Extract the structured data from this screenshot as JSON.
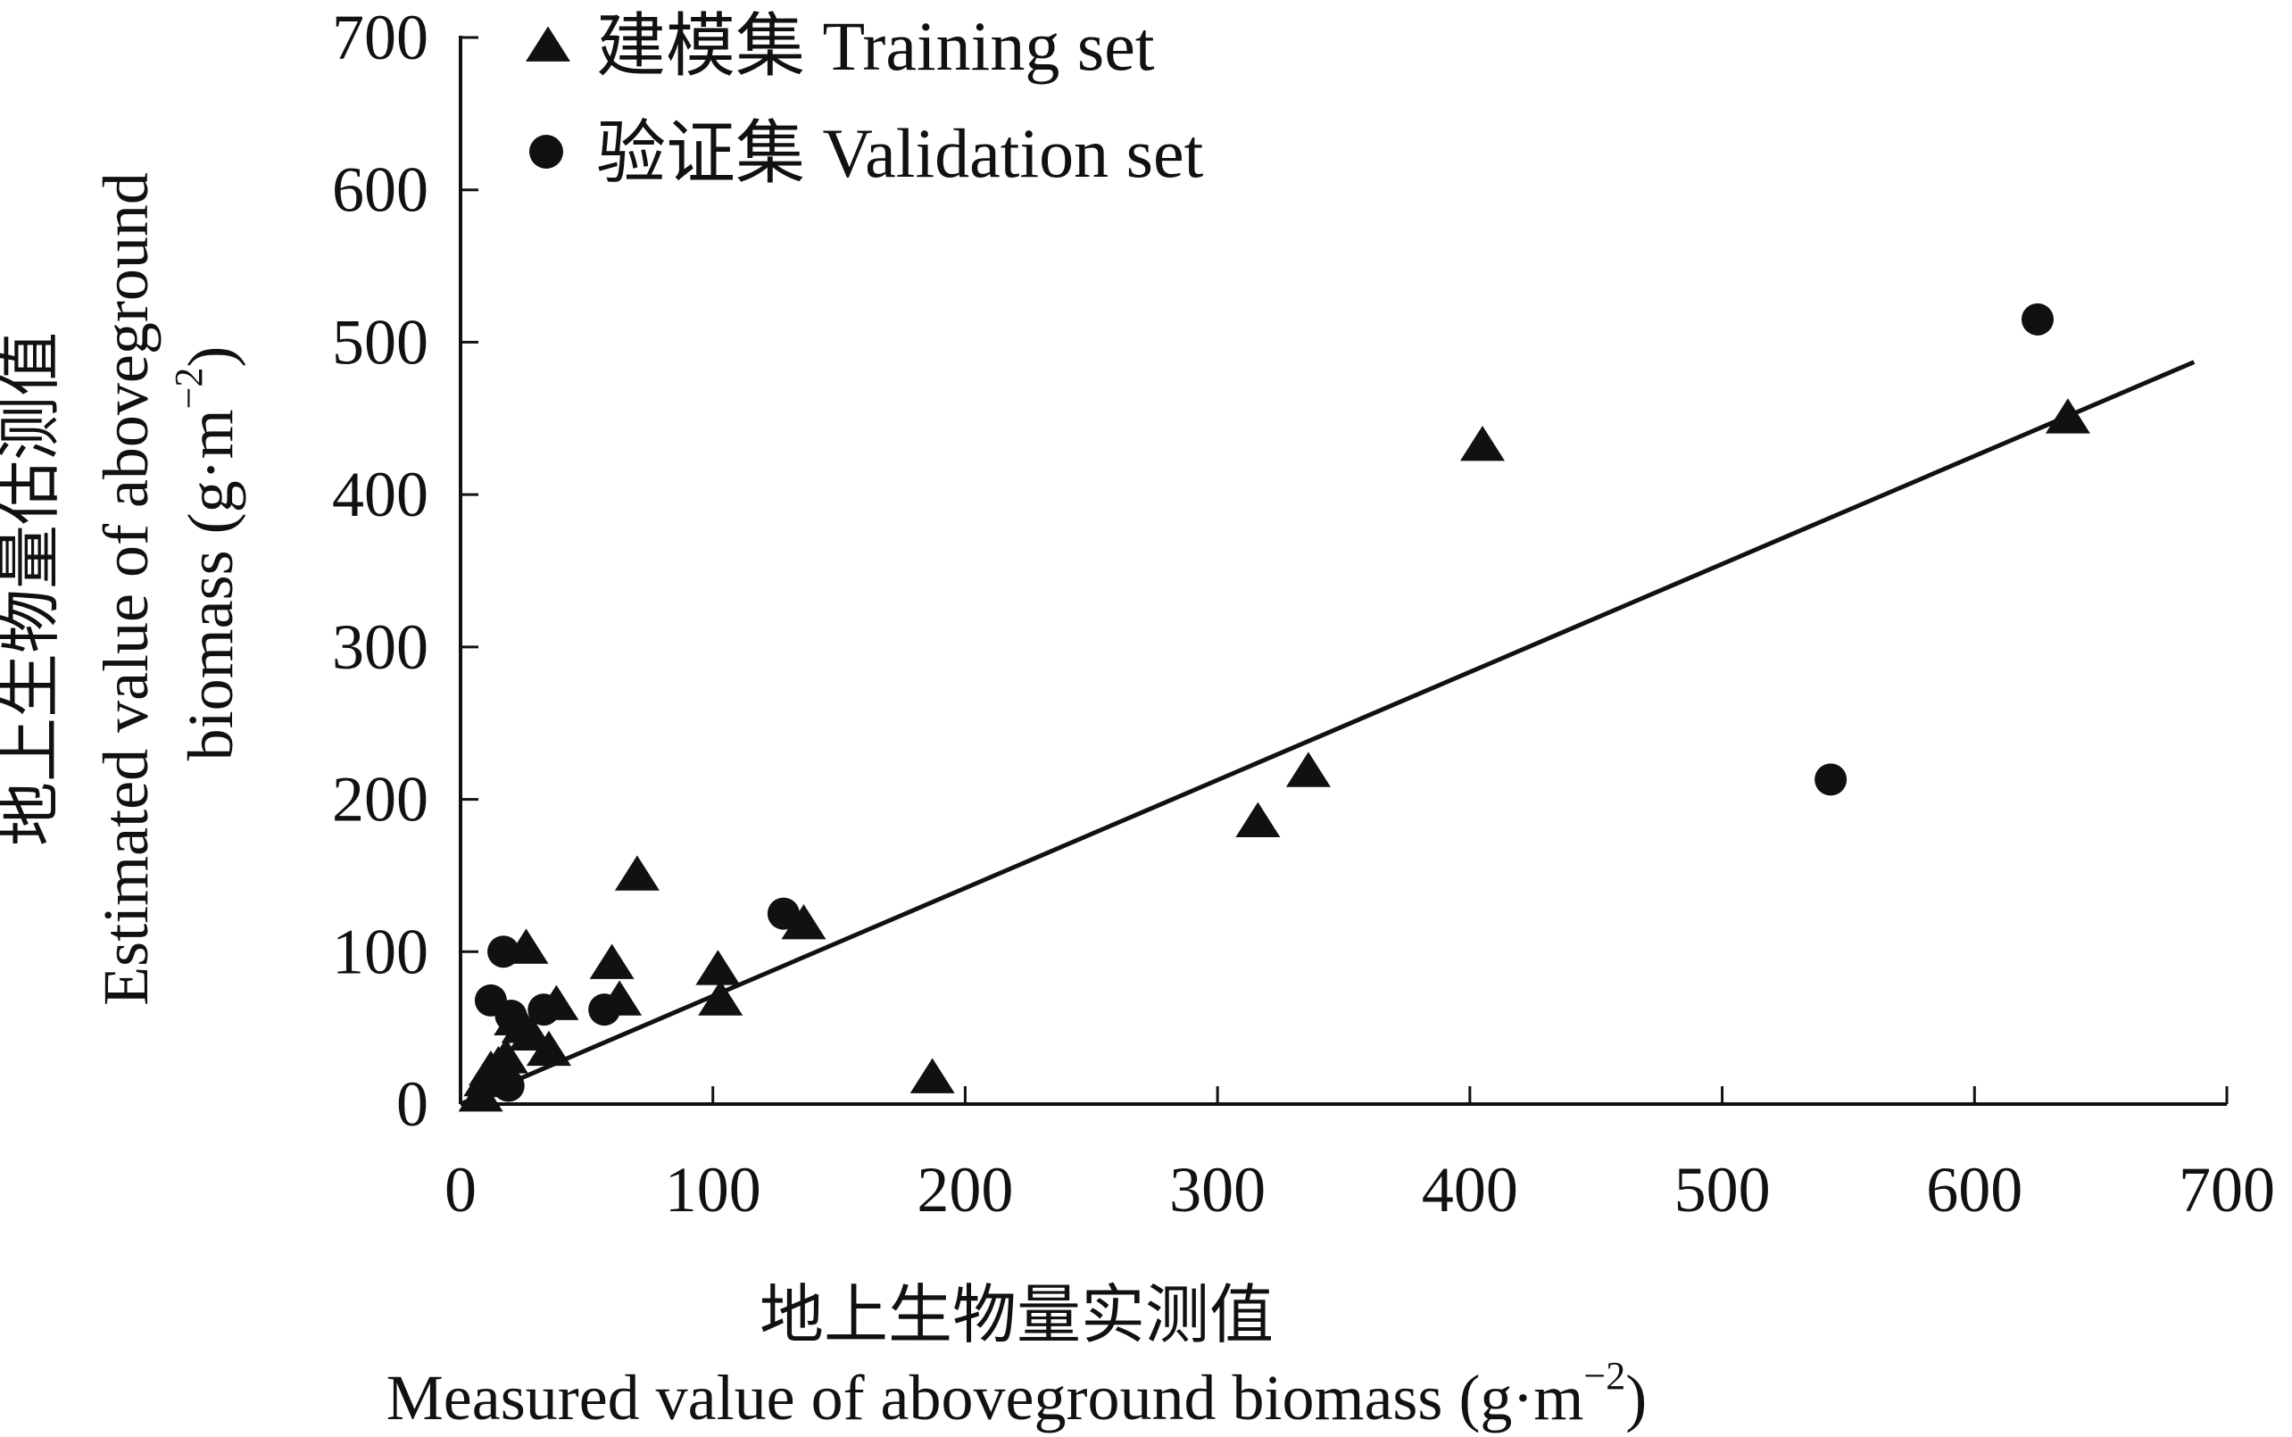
{
  "chart_data": {
    "type": "scatter",
    "x_axis": {
      "label_cn": "地上生物量实测值",
      "label_en_prefix": "Measured value of aboveground biomass (g·m",
      "label_en_exp": "−2",
      "label_en_suffix": ")",
      "range": [
        0,
        700
      ],
      "ticks": [
        0,
        100,
        200,
        300,
        400,
        500,
        600,
        700
      ],
      "tick_labels": [
        "0",
        "100",
        "200",
        "300",
        "400",
        "500",
        "600",
        "700"
      ]
    },
    "y_axis": {
      "label_cn": "地上生物量估测值",
      "label_en_line1": "Estimated value of aboveground",
      "label_en_line2_prefix": "biomass (g·m",
      "label_en_line2_exp": "−2",
      "label_en_line2_suffix": ")",
      "range": [
        0,
        700
      ],
      "ticks": [
        0,
        100,
        200,
        300,
        400,
        500,
        600,
        700
      ],
      "tick_labels": [
        "0",
        "100",
        "200",
        "300",
        "400",
        "500",
        "600",
        "700"
      ]
    },
    "legend": {
      "position": "top-left",
      "entries": [
        {
          "marker": "triangle",
          "label": "建模集 Training set"
        },
        {
          "marker": "circle",
          "label": "验证集 Validation set"
        }
      ]
    },
    "series": [
      {
        "name": "建模集 Training set",
        "marker": "triangle",
        "points": [
          [
            8,
            5
          ],
          [
            10,
            15
          ],
          [
            12,
            22
          ],
          [
            15,
            25
          ],
          [
            18,
            30
          ],
          [
            22,
            55
          ],
          [
            25,
            50
          ],
          [
            26,
            102
          ],
          [
            28,
            45
          ],
          [
            35,
            35
          ],
          [
            38,
            65
          ],
          [
            60,
            92
          ],
          [
            63,
            68
          ],
          [
            70,
            150
          ],
          [
            102,
            88
          ],
          [
            103,
            68
          ],
          [
            136,
            118
          ],
          [
            187,
            17
          ],
          [
            316,
            185
          ],
          [
            336,
            218
          ],
          [
            405,
            432
          ],
          [
            637,
            450
          ]
        ]
      },
      {
        "name": "验证集 Validation set",
        "marker": "circle",
        "points": [
          [
            12,
            68
          ],
          [
            14,
            15
          ],
          [
            17,
            100
          ],
          [
            19,
            12
          ],
          [
            20,
            58
          ],
          [
            33,
            62
          ],
          [
            57,
            62
          ],
          [
            128,
            125
          ],
          [
            543,
            213
          ],
          [
            625,
            515
          ]
        ]
      }
    ],
    "fit_line": {
      "x": [
        0,
        687
      ],
      "y": [
        0,
        487
      ]
    }
  }
}
